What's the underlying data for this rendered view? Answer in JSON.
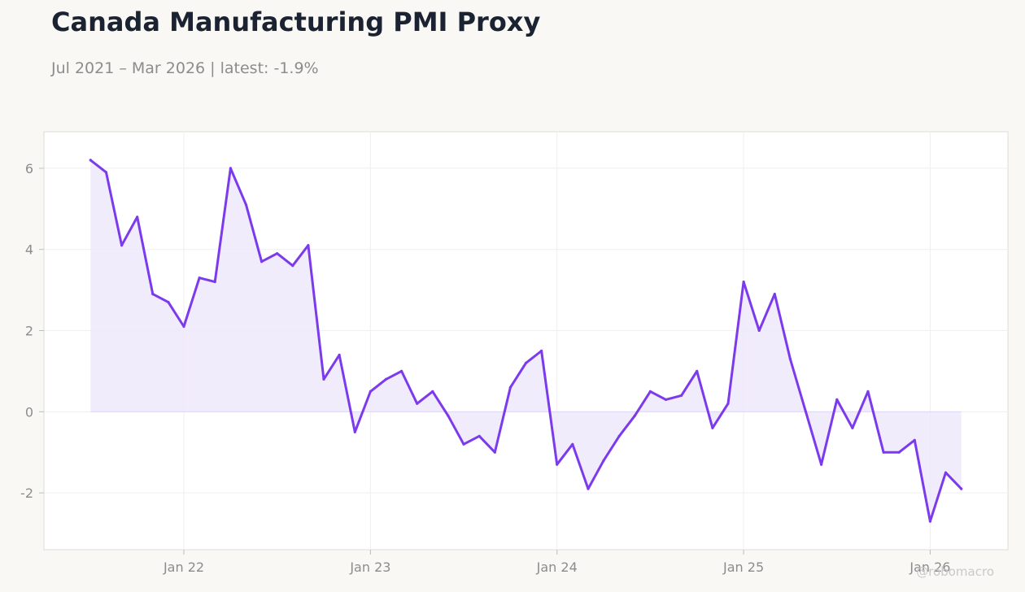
{
  "title": "Canada Manufacturing PMI Proxy",
  "subtitle": "Jul 2021 – Mar 2026 | latest: -1.9%",
  "watermark": "@robomacro",
  "colors": {
    "line": "#7c3aed",
    "area": "#ede7fb",
    "background": "#f9f8f5",
    "plot_background": "#ffffff",
    "grid": "#efefef",
    "axis": "#dcdcd4",
    "zero_line": "#ddd6f5"
  },
  "chart_data": {
    "type": "area",
    "title": "Canada Manufacturing PMI Proxy",
    "subtitle": "Jul 2021 – Mar 2026 | latest: -1.9%",
    "xlabel": "",
    "ylabel": "",
    "x_start": "2021-07",
    "x_end": "2026-03",
    "xlim": [
      "2021-04",
      "2026-06"
    ],
    "ylim": [
      -3.4,
      6.9
    ],
    "x_ticks": [
      {
        "date": "2022-01",
        "label": "Jan 22"
      },
      {
        "date": "2023-01",
        "label": "Jan 23"
      },
      {
        "date": "2024-01",
        "label": "Jan 24"
      },
      {
        "date": "2025-01",
        "label": "Jan 25"
      },
      {
        "date": "2026-01",
        "label": "Jan 26"
      }
    ],
    "y_ticks": [
      {
        "value": -2,
        "label": "-2"
      },
      {
        "value": 0,
        "label": "0"
      },
      {
        "value": 2,
        "label": "2"
      },
      {
        "value": 4,
        "label": "4"
      },
      {
        "value": 6,
        "label": "6"
      }
    ],
    "grid": true,
    "fill_to_zero": true,
    "series": [
      {
        "x": [
          "2021-07",
          "2021-08",
          "2021-09",
          "2021-10",
          "2021-11",
          "2021-12",
          "2022-01",
          "2022-02",
          "2022-03",
          "2022-04",
          "2022-05",
          "2022-06",
          "2022-07",
          "2022-08",
          "2022-09",
          "2022-10",
          "2022-11",
          "2022-12",
          "2023-01",
          "2023-02",
          "2023-03",
          "2023-04",
          "2023-05",
          "2023-06",
          "2023-07",
          "2023-08",
          "2023-09",
          "2023-10",
          "2023-11",
          "2023-12",
          "2024-01",
          "2024-02",
          "2024-03",
          "2024-04",
          "2024-05",
          "2024-06",
          "2024-07",
          "2024-08",
          "2024-09",
          "2024-10",
          "2024-11",
          "2024-12",
          "2025-01",
          "2025-02",
          "2025-03",
          "2025-04",
          "2025-05",
          "2025-06",
          "2025-07",
          "2025-08",
          "2025-09",
          "2025-10",
          "2025-11",
          "2025-12",
          "2026-01",
          "2026-02",
          "2026-03"
        ],
        "values": [
          6.2,
          5.9,
          4.1,
          4.8,
          2.9,
          2.7,
          2.1,
          3.3,
          3.2,
          6.0,
          5.1,
          3.7,
          3.9,
          3.6,
          4.1,
          0.8,
          1.4,
          -0.5,
          0.5,
          0.8,
          1.0,
          0.2,
          0.5,
          -0.1,
          -0.8,
          -0.6,
          -1.0,
          0.6,
          1.2,
          1.5,
          -1.3,
          -0.8,
          -1.9,
          -1.2,
          -0.6,
          -0.1,
          0.5,
          0.3,
          0.4,
          1.0,
          -0.4,
          0.2,
          3.2,
          2.0,
          2.9,
          1.3,
          0.0,
          -1.3,
          0.3,
          -0.4,
          0.5,
          -1.0,
          -1.0,
          -0.7,
          -2.7,
          -1.5,
          -1.9
        ]
      }
    ]
  }
}
